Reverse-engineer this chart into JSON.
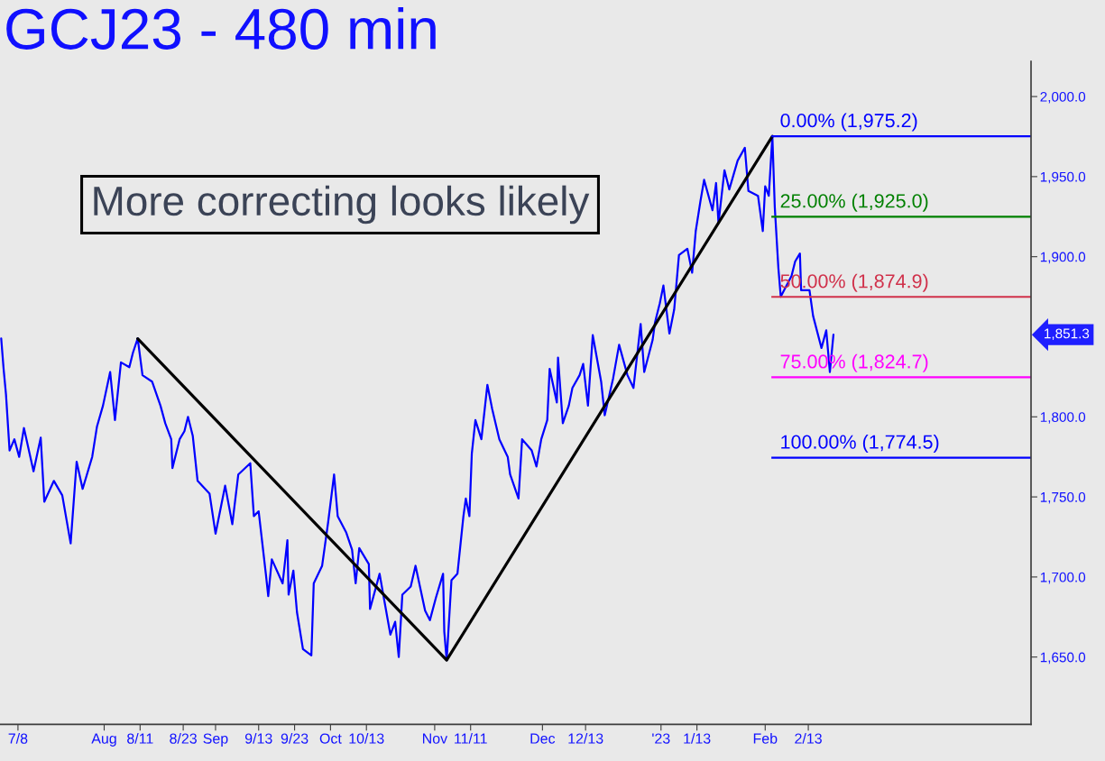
{
  "chart_data": {
    "type": "line",
    "title": "GCJ23 - 480 min",
    "line_style": "solid",
    "x": [
      "2022-07-03T08:00",
      "2022-07-04T00:00",
      "2022-07-04T16:00",
      "2022-07-05T16:00",
      "2022-07-07T00:00",
      "2022-07-08T08:00",
      "2022-07-09T16:00",
      "2022-07-12T08:00",
      "2022-07-14T08:00",
      "2022-07-15T08:00",
      "2022-07-18T00:00",
      "2022-07-20T08:00",
      "2022-07-22T16:00",
      "2022-07-24T08:00",
      "2022-07-26T00:00",
      "2022-07-28T16:00",
      "2022-07-30T00:00",
      "2022-07-31T16:00",
      "2022-08-02T16:00",
      "2022-08-04T00:00",
      "2022-08-05T16:00",
      "2022-08-08T00:00",
      "2022-08-09T00:00",
      "2022-08-10T08:00",
      "2022-08-11T16:00",
      "2022-08-14T08:00",
      "2022-08-16T16:00",
      "2022-08-18T00:00",
      "2022-08-19T16:00",
      "2022-08-20T00:00",
      "2022-08-22T00:00",
      "2022-08-23T08:00",
      "2022-08-24T08:00",
      "2022-08-25T16:00",
      "2022-08-27T00:00",
      "2022-08-30T08:00",
      "2022-09-01T00:00",
      "2022-09-03T16:00",
      "2022-09-05T16:00",
      "2022-09-07T08:00",
      "2022-09-10T16:00",
      "2022-09-11T16:00",
      "2022-09-13T00:00",
      "2022-09-15T00:00",
      "2022-09-15T16:00",
      "2022-09-16T16:00",
      "2022-09-19T16:00",
      "2022-09-21T00:00",
      "2022-09-21T08:00",
      "2022-09-22T16:00",
      "2022-09-23T16:00",
      "2022-09-25T08:00",
      "2022-09-27T16:00",
      "2022-09-28T08:00",
      "2022-09-30T16:00",
      "2022-10-02T08:00",
      "2022-10-04T00:00",
      "2022-10-05T00:00",
      "2022-10-07T08:00",
      "2022-10-09T00:00",
      "2022-10-10T00:00",
      "2022-10-11T00:00",
      "2022-10-13T16:00",
      "2022-10-14T00:00",
      "2022-10-16T16:00",
      "2022-10-18T00:00",
      "2022-10-19T16:00",
      "2022-10-21T00:00",
      "2022-10-22T00:00",
      "2022-10-23T00:00",
      "2022-10-25T08:00",
      "2022-10-26T16:00",
      "2022-10-29T08:00",
      "2022-10-30T16:00",
      "2022-11-01T08:00",
      "2022-11-03T08:00",
      "2022-11-03T16:00",
      "2022-11-04T08:00",
      "2022-11-05T16:00",
      "2022-11-07T08:00",
      "2022-11-09T00:00",
      "2022-11-09T16:00",
      "2022-11-10T16:00",
      "2022-11-11T08:00",
      "2022-11-12T08:00",
      "2022-11-14T00:00",
      "2022-11-15T16:00",
      "2022-11-17T00:00",
      "2022-11-19T00:00",
      "2022-11-21T08:00",
      "2022-11-22T00:00",
      "2022-11-24T08:00",
      "2022-11-25T08:00",
      "2022-11-28T00:00",
      "2022-11-29T08:00",
      "2022-11-30T16:00",
      "2022-12-02T08:00",
      "2022-12-03T00:00",
      "2022-12-05T00:00",
      "2022-12-05T08:00",
      "2022-12-06T16:00",
      "2022-12-08T08:00",
      "2022-12-09T08:00",
      "2022-12-11T08:00",
      "2022-12-12T08:00",
      "2022-12-13T16:00",
      "2022-12-15T00:00",
      "2022-12-17T08:00",
      "2022-12-18T08:00",
      "2022-12-20T16:00",
      "2022-12-22T08:00",
      "2022-12-24T16:00",
      "2022-12-26T08:00",
      "2022-12-28T08:00",
      "2022-12-29T08:00",
      "2022-12-31T16:00",
      "2023-01-01T08:00",
      "2023-01-02T16:00",
      "2023-01-03T16:00",
      "2023-01-05T08:00",
      "2023-01-06T16:00",
      "2023-01-08T00:00",
      "2023-01-10T08:00",
      "2023-01-11T16:00",
      "2023-01-12T16:00",
      "2023-01-14T00:00",
      "2023-01-15T00:00",
      "2023-01-17T08:00",
      "2023-01-18T08:00",
      "2023-01-19T00:00",
      "2023-01-20T16:00",
      "2023-01-22T00:00",
      "2023-01-24T08:00",
      "2023-01-26T08:00",
      "2023-01-27T08:00",
      "2023-01-30T00:00",
      "2023-01-31T08:00",
      "2023-02-01T00:00",
      "2023-02-02T00:00",
      "2023-02-03T00:00",
      "2023-02-03T16:00",
      "2023-02-04T16:00",
      "2023-02-05T08:00",
      "2023-02-08T08:00",
      "2023-02-09T08:00",
      "2023-02-10T16:00",
      "2023-02-11T00:00",
      "2023-02-13T08:00",
      "2023-02-14T08:00",
      "2023-02-16T16:00",
      "2023-02-18T00:00",
      "2023-02-19T00:00",
      "2023-02-20T00:00"
    ],
    "series": [
      {
        "color": "#0000ff",
        "values": [
          1849,
          1830,
          1814,
          1779,
          1786,
          1775,
          1793,
          1766,
          1787,
          1747,
          1760,
          1751,
          1721,
          1772,
          1755,
          1775,
          1794,
          1807,
          1828,
          1798,
          1834,
          1831,
          1840,
          1849,
          1826,
          1822,
          1807,
          1796,
          1786,
          1768,
          1786,
          1791,
          1800,
          1788,
          1760,
          1752,
          1727,
          1757,
          1733,
          1764,
          1771,
          1738,
          1741,
          1702,
          1688,
          1711,
          1696,
          1723,
          1689,
          1704,
          1678,
          1655,
          1651,
          1696,
          1707,
          1734,
          1764,
          1738,
          1728,
          1717,
          1696,
          1718,
          1708,
          1680,
          1702,
          1685,
          1664,
          1672,
          1650,
          1689,
          1694,
          1707,
          1679,
          1673,
          1687,
          1702,
          1666,
          1648,
          1698,
          1702,
          1738,
          1749,
          1738,
          1777,
          1798,
          1786,
          1820,
          1805,
          1786,
          1775,
          1764,
          1749,
          1786,
          1779,
          1769,
          1786,
          1798,
          1830,
          1809,
          1837,
          1796,
          1807,
          1818,
          1826,
          1833,
          1807,
          1851,
          1822,
          1801,
          1824,
          1845,
          1826,
          1818,
          1858,
          1828,
          1848,
          1859,
          1871,
          1882,
          1852,
          1867,
          1901,
          1905,
          1890,
          1916,
          1935,
          1948,
          1929,
          1946,
          1921,
          1954,
          1942,
          1960,
          1968,
          1941,
          1938,
          1916,
          1944,
          1938,
          1975.2,
          1931,
          1893,
          1875,
          1888,
          1897,
          1902,
          1879,
          1879,
          1863,
          1843,
          1854,
          1828,
          1851.3
        ]
      },
      {
        "color": "#000000",
        "x": [
          "2022-08-10T08:00",
          "2022-11-04T08:00",
          "2023-02-03T00:00"
        ],
        "values": [
          1848.8,
          1648.1,
          1975.2
        ]
      }
    ],
    "xlim": [
      "2022-07-03",
      "2023-04-16"
    ],
    "ylim": [
      1608,
      2022
    ],
    "xticks": [
      {
        "value": "2022-07-08",
        "label": "7/8"
      },
      {
        "value": "2022-08-01",
        "label": "Aug"
      },
      {
        "value": "2022-08-11",
        "label": "8/11"
      },
      {
        "value": "2022-08-23",
        "label": "8/23"
      },
      {
        "value": "2022-09-01",
        "label": "Sep"
      },
      {
        "value": "2022-09-13",
        "label": "9/13"
      },
      {
        "value": "2022-09-23",
        "label": "9/23"
      },
      {
        "value": "2022-10-03",
        "label": "Oct"
      },
      {
        "value": "2022-10-13",
        "label": "10/13"
      },
      {
        "value": "2022-11-01",
        "label": "Nov"
      },
      {
        "value": "2022-11-11",
        "label": "11/11"
      },
      {
        "value": "2022-12-01",
        "label": "Dec"
      },
      {
        "value": "2022-12-13",
        "label": "12/13"
      },
      {
        "value": "2023-01-03",
        "label": "'23"
      },
      {
        "value": "2023-01-13",
        "label": "1/13"
      },
      {
        "value": "2023-02-01",
        "label": "Feb"
      },
      {
        "value": "2023-02-13",
        "label": "2/13"
      }
    ],
    "yticks": [
      {
        "value": 1650,
        "label": "1,650.0"
      },
      {
        "value": 1700,
        "label": "1,700.0"
      },
      {
        "value": 1750,
        "label": "1,750.0"
      },
      {
        "value": 1800,
        "label": "1,800.0"
      },
      {
        "value": 1900,
        "label": "1,900.0"
      },
      {
        "value": 1950,
        "label": "1,950.0"
      },
      {
        "value": 2000,
        "label": "2,000.0"
      }
    ],
    "ref_lines": [
      {
        "axis": "y",
        "value": 1975.2,
        "label": "0.00% (1,975.2)",
        "color": "#0000ff"
      },
      {
        "axis": "y",
        "value": 1925.0,
        "label": "25.00% (1,925.0)",
        "color": "#008000"
      },
      {
        "axis": "y",
        "value": 1874.9,
        "label": "50.00% (1,874.9)",
        "color": "#d0304a"
      },
      {
        "axis": "y",
        "value": 1824.7,
        "label": "75.00% (1,824.7)",
        "color": "#ff00ff"
      },
      {
        "axis": "y",
        "value": 1774.5,
        "label": "100.00% (1,774.5)",
        "color": "#0000ff"
      }
    ],
    "annotations": [
      "More correcting looks likely",
      "1,851.3"
    ]
  }
}
